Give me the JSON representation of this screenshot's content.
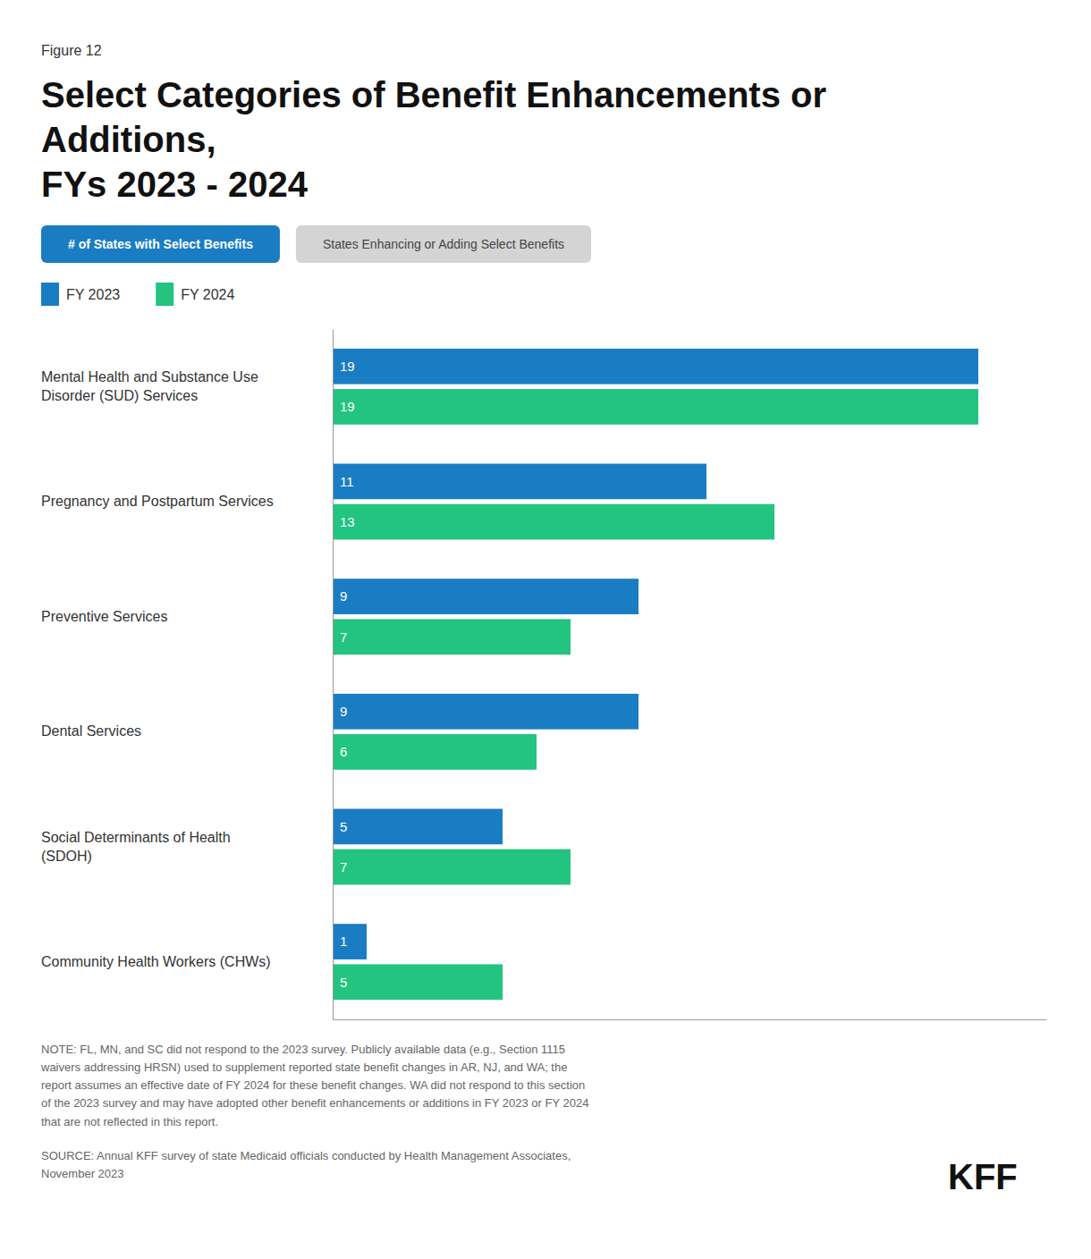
{
  "chart_data": {
    "type": "bar",
    "orientation": "horizontal",
    "figure_label": "Figure 12",
    "title": "Select Categories of Benefit Enhancements or\nAdditions,\nFYs 2023 - 2024",
    "badges": [
      {
        "text": "# of States with Select Benefits",
        "color": "#1a7dc4"
      },
      {
        "text": "States Enhancing or Adding Select Benefits",
        "color": "#d4d4d4"
      }
    ],
    "categories": [
      "Mental Health and Substance Use\nDisorder (SUD) Services",
      "Pregnancy and Postpartum Services",
      "Preventive Services",
      "Dental Services",
      "Social Determinants of Health\n(SDOH)",
      "Community Health Workers (CHWs)"
    ],
    "series": [
      {
        "name": "FY 2023",
        "color": "#1a7dc4",
        "values": [
          19,
          11,
          9,
          9,
          5,
          1
        ]
      },
      {
        "name": "FY 2024",
        "color": "#22c480",
        "values": [
          19,
          13,
          7,
          6,
          7,
          5
        ]
      }
    ],
    "xlim": [
      0,
      21
    ],
    "tick_labels": "y",
    "data_labels": true,
    "legend": "top-left",
    "annotations": [
      "NOTE: FL, MN, and SC did not respond to the 2023 survey. Publicly available data (e.g., Section 1115\nwaivers addressing HRSN) used to supplement reported state benefit changes in AR, NJ, and WA; the\nreport assumes an effective date of FY 2024 for these benefit changes. WA did not respond to this section\nof the 2023 survey and may have adopted other benefit enhancements or additions in FY 2023 or FY 2024\nthat are not reflected in this report.",
      "SOURCE: Annual KFF survey of state Medicaid officials conducted by Health Management Associates,\nNovember 2023",
      "KFF"
    ]
  }
}
